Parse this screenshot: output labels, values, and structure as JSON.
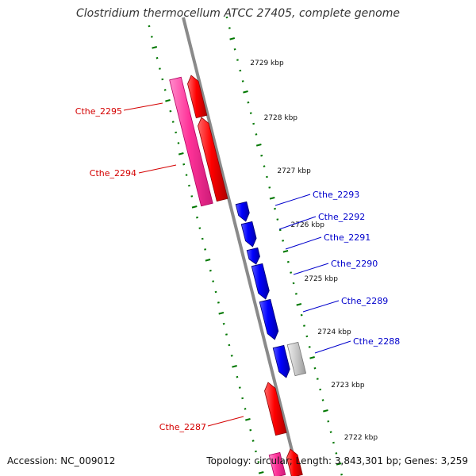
{
  "title": "Clostridium thermocellum ATCC 27405, complete genome",
  "colors": {
    "forward_gene": "#ff0000",
    "reverse_gene": "#0000ff",
    "pink_gene": "#ff3399",
    "grey_gene": "#c8c8c8",
    "tick": "#007700",
    "label_forward": "#d40000",
    "label_reverse": "#0000cc",
    "backbone": "#888888"
  },
  "scale": {
    "unit": "kbp",
    "labels": [
      "2722 kbp",
      "2723 kbp",
      "2724 kbp",
      "2725 kbp",
      "2726 kbp",
      "2727 kbp",
      "2728 kbp",
      "2729 kbp"
    ]
  },
  "genes": [
    {
      "label": "Cthe_2295",
      "strand": "forward"
    },
    {
      "label": "Cthe_2294",
      "strand": "forward"
    },
    {
      "label": "Cthe_2293",
      "strand": "reverse"
    },
    {
      "label": "Cthe_2292",
      "strand": "reverse"
    },
    {
      "label": "Cthe_2291",
      "strand": "reverse"
    },
    {
      "label": "Cthe_2290",
      "strand": "reverse"
    },
    {
      "label": "Cthe_2289",
      "strand": "reverse"
    },
    {
      "label": "Cthe_2288",
      "strand": "reverse"
    },
    {
      "label": "Cthe_2287",
      "strand": "forward"
    }
  ],
  "footer": {
    "accession": "Accession: NC_009012",
    "summary": "Topology: circular; Length: 3,843,301 bp; Genes: 3,259"
  }
}
